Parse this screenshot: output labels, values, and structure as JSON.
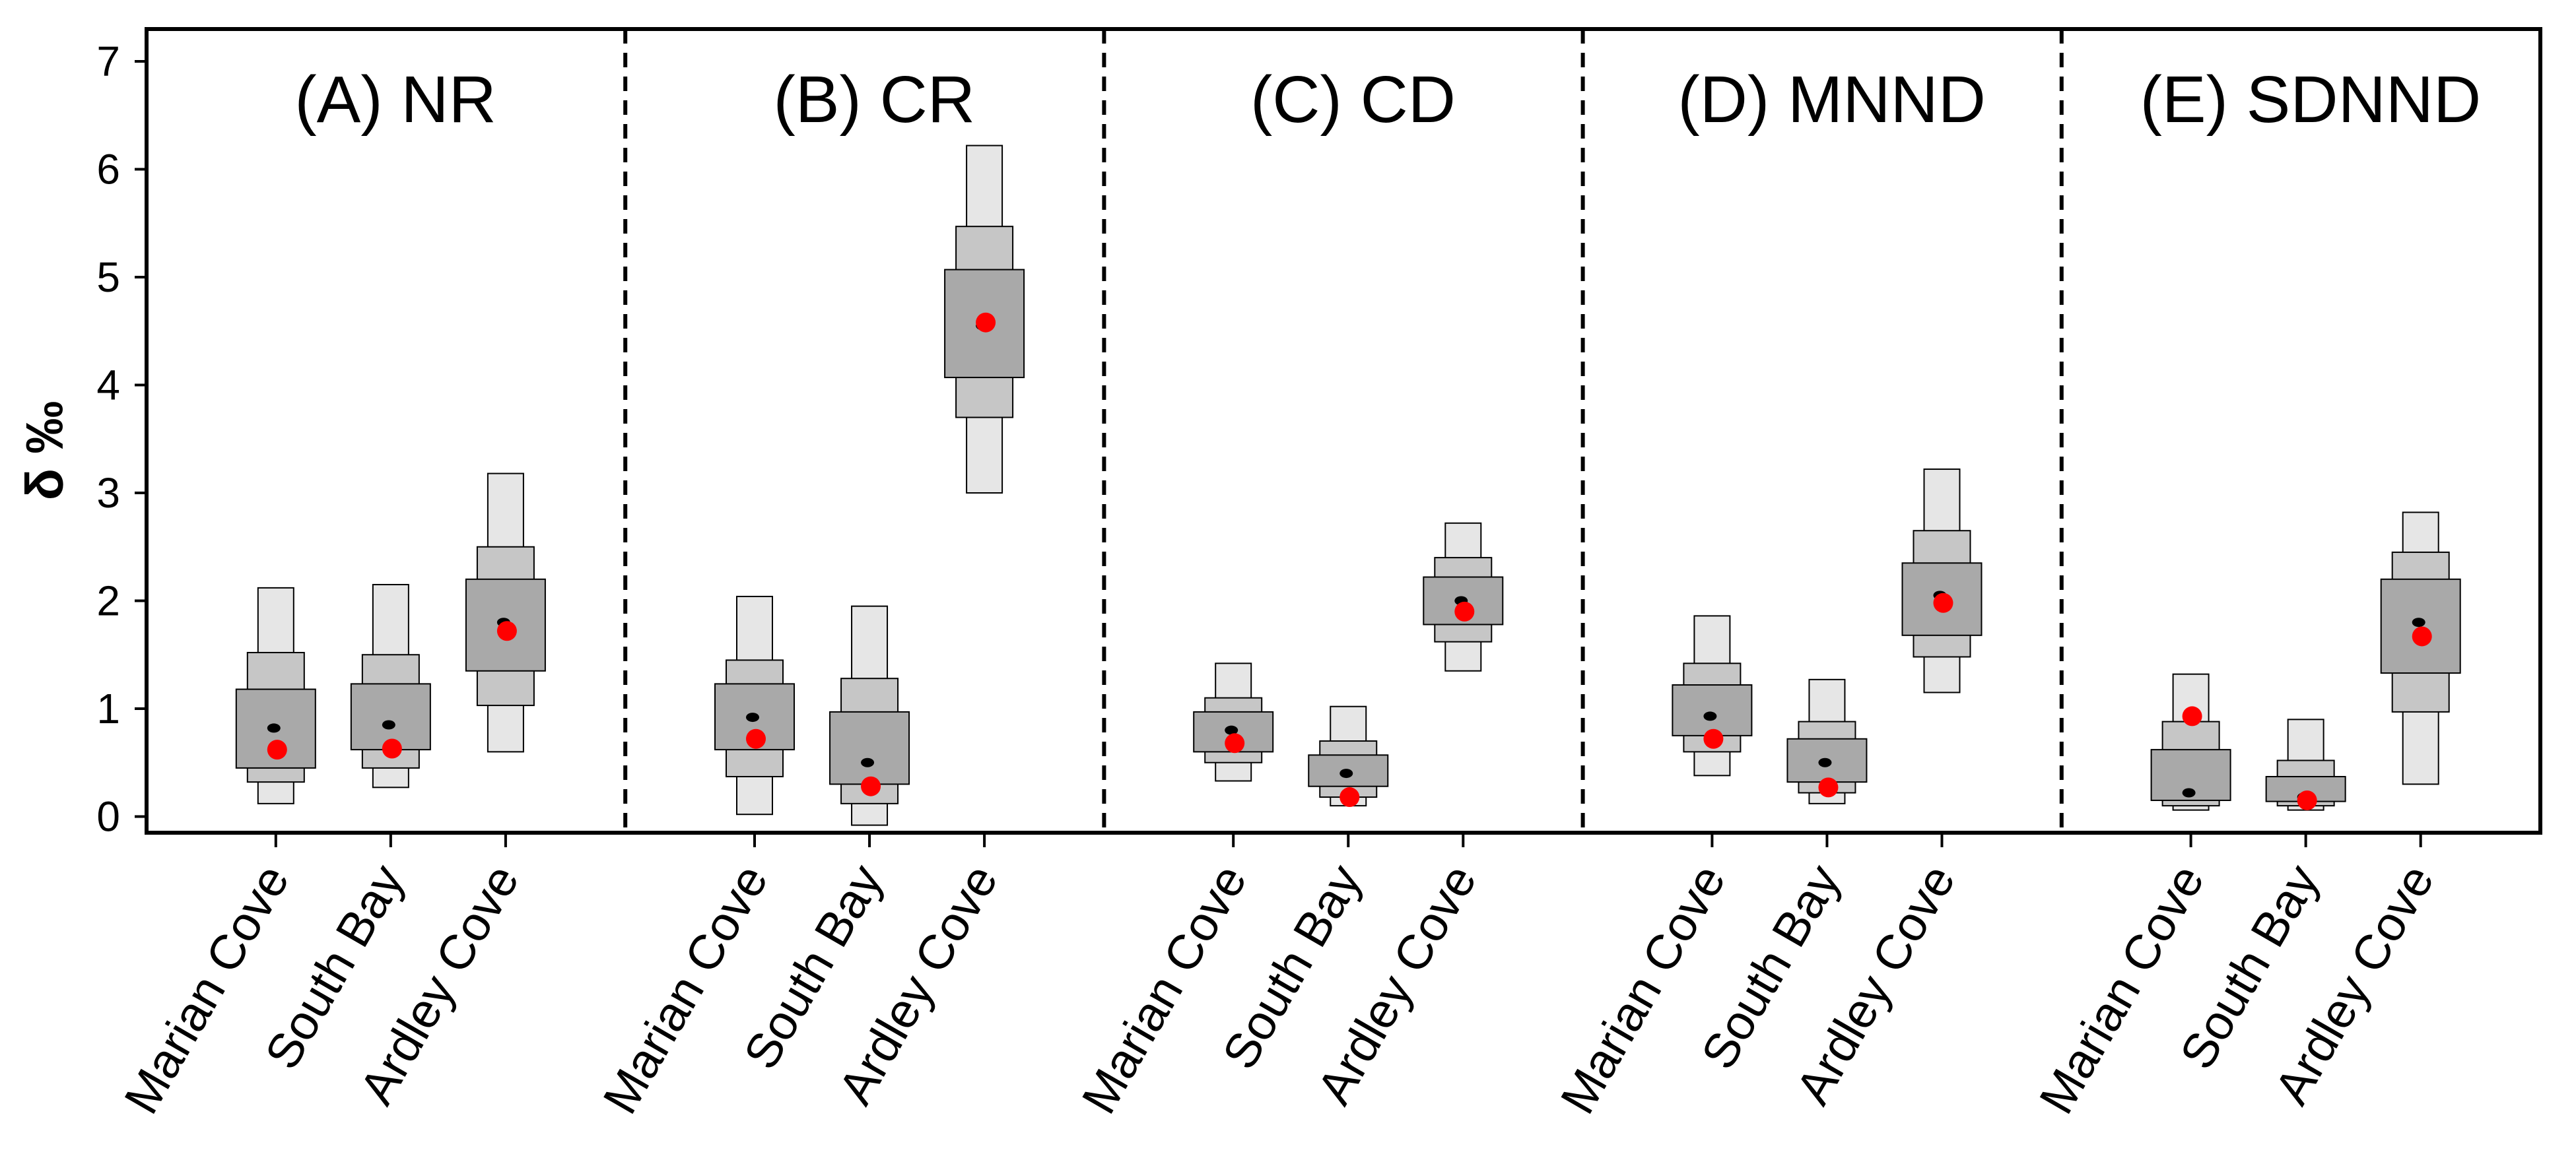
{
  "chart_data": {
    "type": "boxplot-density",
    "ylabel": "δ ‰",
    "ylim": [
      -0.15,
      7.3
    ],
    "yticks": [
      0,
      1,
      2,
      3,
      4,
      5,
      6,
      7
    ],
    "grid": false,
    "legend": "none",
    "colors": {
      "inner": "#a9a9a9",
      "middle": "#c6c6c6",
      "outer": "#e6e6e6",
      "mode": "#000000",
      "estimate": "#ff0000"
    },
    "categories": [
      "Marian Cove",
      "South Bay",
      "Ardley Cove"
    ],
    "panels": [
      {
        "title": "(A) NR",
        "groups": [
          {
            "name": "Marian Cove",
            "ci95": [
              0.12,
              2.12
            ],
            "ci75": [
              0.32,
              1.52
            ],
            "ci50": [
              0.45,
              1.18
            ],
            "mode": 0.82,
            "estimate": 0.62
          },
          {
            "name": "South Bay",
            "ci95": [
              0.27,
              2.15
            ],
            "ci75": [
              0.45,
              1.5
            ],
            "ci50": [
              0.62,
              1.23
            ],
            "mode": 0.85,
            "estimate": 0.63
          },
          {
            "name": "Ardley Cove",
            "ci95": [
              0.6,
              3.18
            ],
            "ci75": [
              1.03,
              2.5
            ],
            "ci50": [
              1.35,
              2.2
            ],
            "mode": 1.8,
            "estimate": 1.72
          }
        ]
      },
      {
        "title": "(B) CR",
        "groups": [
          {
            "name": "Marian Cove",
            "ci95": [
              0.02,
              2.04
            ],
            "ci75": [
              0.37,
              1.45
            ],
            "ci50": [
              0.62,
              1.23
            ],
            "mode": 0.92,
            "estimate": 0.72
          },
          {
            "name": "South Bay",
            "ci95": [
              -0.08,
              1.95
            ],
            "ci75": [
              0.12,
              1.28
            ],
            "ci50": [
              0.3,
              0.97
            ],
            "mode": 0.5,
            "estimate": 0.28
          },
          {
            "name": "Ardley Cove",
            "ci95": [
              3.0,
              6.22
            ],
            "ci75": [
              3.7,
              5.47
            ],
            "ci50": [
              4.07,
              5.07
            ],
            "mode": 4.55,
            "estimate": 4.58
          }
        ]
      },
      {
        "title": "(C) CD",
        "groups": [
          {
            "name": "Marian Cove",
            "ci95": [
              0.33,
              1.42
            ],
            "ci75": [
              0.5,
              1.1
            ],
            "ci50": [
              0.6,
              0.97
            ],
            "mode": 0.8,
            "estimate": 0.68
          },
          {
            "name": "South Bay",
            "ci95": [
              0.1,
              1.02
            ],
            "ci75": [
              0.18,
              0.7
            ],
            "ci50": [
              0.28,
              0.57
            ],
            "mode": 0.4,
            "estimate": 0.18
          },
          {
            "name": "Ardley Cove",
            "ci95": [
              1.35,
              2.72
            ],
            "ci75": [
              1.62,
              2.4
            ],
            "ci50": [
              1.78,
              2.22
            ],
            "mode": 2.0,
            "estimate": 1.9
          }
        ]
      },
      {
        "title": "(D) MNND",
        "groups": [
          {
            "name": "Marian Cove",
            "ci95": [
              0.38,
              1.86
            ],
            "ci75": [
              0.6,
              1.42
            ],
            "ci50": [
              0.75,
              1.22
            ],
            "mode": 0.93,
            "estimate": 0.72
          },
          {
            "name": "South Bay",
            "ci95": [
              0.12,
              1.27
            ],
            "ci75": [
              0.22,
              0.88
            ],
            "ci50": [
              0.32,
              0.72
            ],
            "mode": 0.5,
            "estimate": 0.27
          },
          {
            "name": "Ardley Cove",
            "ci95": [
              1.15,
              3.22
            ],
            "ci75": [
              1.48,
              2.65
            ],
            "ci50": [
              1.68,
              2.35
            ],
            "mode": 2.05,
            "estimate": 1.98
          }
        ]
      },
      {
        "title": "(E) SDNND",
        "groups": [
          {
            "name": "Marian Cove",
            "ci95": [
              0.06,
              1.32
            ],
            "ci75": [
              0.1,
              0.88
            ],
            "ci50": [
              0.15,
              0.62
            ],
            "mode": 0.22,
            "estimate": 0.93
          },
          {
            "name": "South Bay",
            "ci95": [
              0.06,
              0.9
            ],
            "ci75": [
              0.1,
              0.52
            ],
            "ci50": [
              0.14,
              0.37
            ],
            "mode": 0.18,
            "estimate": 0.15
          },
          {
            "name": "Ardley Cove",
            "ci95": [
              0.3,
              2.82
            ],
            "ci75": [
              0.97,
              2.45
            ],
            "ci50": [
              1.33,
              2.2
            ],
            "mode": 1.8,
            "estimate": 1.67
          }
        ]
      }
    ]
  }
}
